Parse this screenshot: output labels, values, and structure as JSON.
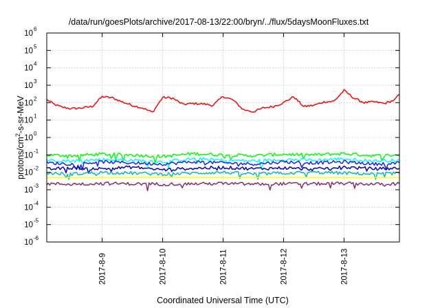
{
  "chart_data": {
    "type": "line",
    "title": "/data/run/goesPlots/archive/2017-08-13/22:00/bryn/../flux/5daysMoonFluxes.txt",
    "xlabel": "Coordinated Universal Time (UTC)",
    "ylabel": "protons/cm²-s-sr-MeV",
    "y_scale": "log",
    "ylim": [
      1e-06,
      1000000.0
    ],
    "y_ticks": [
      {
        "base": "10",
        "exp": "-6"
      },
      {
        "base": "10",
        "exp": "-5"
      },
      {
        "base": "10",
        "exp": "-4"
      },
      {
        "base": "10",
        "exp": "-3"
      },
      {
        "base": "10",
        "exp": "-2"
      },
      {
        "base": "10",
        "exp": "-1"
      },
      {
        "base": "10",
        "exp": "0"
      },
      {
        "base": "10",
        "exp": "1"
      },
      {
        "base": "10",
        "exp": "2"
      },
      {
        "base": "10",
        "exp": "3"
      },
      {
        "base": "10",
        "exp": "4"
      },
      {
        "base": "10",
        "exp": "5"
      },
      {
        "base": "10",
        "exp": "6"
      }
    ],
    "x_ticks": [
      "2017-8-9",
      "2017-8-10",
      "2017-8-11",
      "2017-8-12",
      "2017-8-13"
    ],
    "xlim": [
      "2017-08-08 02:00",
      "2017-08-13 22:00"
    ],
    "grid": true,
    "series": [
      {
        "color": "#ff0000",
        "x": [
          "2017-08-08 02:00",
          "2017-08-08 05:00",
          "2017-08-08 08:00",
          "2017-08-08 12:00",
          "2017-08-08 16:00",
          "2017-08-08 20:00",
          "2017-08-09 00:00",
          "2017-08-09 04:00",
          "2017-08-09 08:00",
          "2017-08-09 12:00",
          "2017-08-09 16:00",
          "2017-08-09 20:00",
          "2017-08-10 00:00",
          "2017-08-10 04:00",
          "2017-08-10 08:00",
          "2017-08-10 12:00",
          "2017-08-10 16:00",
          "2017-08-10 20:00",
          "2017-08-11 00:00",
          "2017-08-11 04:00",
          "2017-08-11 08:00",
          "2017-08-11 12:00",
          "2017-08-11 16:00",
          "2017-08-11 20:00",
          "2017-08-12 00:00",
          "2017-08-12 04:00",
          "2017-08-12 08:00",
          "2017-08-12 12:00",
          "2017-08-12 16:00",
          "2017-08-12 20:00",
          "2017-08-13 00:00",
          "2017-08-13 04:00",
          "2017-08-13 08:00",
          "2017-08-13 12:00",
          "2017-08-13 16:00",
          "2017-08-13 20:00",
          "2017-08-13 22:00"
        ],
        "y": [
          150,
          80,
          55,
          45,
          50,
          60,
          220,
          190,
          110,
          70,
          50,
          28,
          200,
          180,
          80,
          90,
          85,
          70,
          230,
          140,
          40,
          30,
          50,
          60,
          100,
          220,
          60,
          70,
          110,
          120,
          500,
          180,
          100,
          110,
          90,
          140,
          300
        ]
      },
      {
        "color": "#00ff00",
        "x": [
          "2017-08-08 02:00",
          "2017-08-08 12:00",
          "2017-08-09 00:00",
          "2017-08-09 12:00",
          "2017-08-10 00:00",
          "2017-08-10 12:00",
          "2017-08-11 00:00",
          "2017-08-11 12:00",
          "2017-08-12 00:00",
          "2017-08-12 12:00",
          "2017-08-13 00:00",
          "2017-08-13 12:00",
          "2017-08-13 22:00"
        ],
        "y": [
          0.1,
          0.09,
          0.11,
          0.1,
          0.08,
          0.12,
          0.1,
          0.09,
          0.11,
          0.1,
          0.12,
          0.09,
          0.1
        ]
      },
      {
        "color": "#00ffff",
        "x": [
          "2017-08-08 02:00",
          "2017-08-08 12:00",
          "2017-08-09 00:00",
          "2017-08-09 12:00",
          "2017-08-10 00:00",
          "2017-08-10 12:00",
          "2017-08-11 00:00",
          "2017-08-11 12:00",
          "2017-08-12 00:00",
          "2017-08-12 12:00",
          "2017-08-13 00:00",
          "2017-08-13 12:00",
          "2017-08-13 22:00"
        ],
        "y": [
          0.05,
          0.045,
          0.055,
          0.05,
          0.04,
          0.06,
          0.05,
          0.045,
          0.055,
          0.05,
          0.06,
          0.045,
          0.05
        ]
      },
      {
        "color": "#1e1eff",
        "x": [
          "2017-08-08 02:00",
          "2017-08-08 12:00",
          "2017-08-09 00:00",
          "2017-08-09 12:00",
          "2017-08-10 00:00",
          "2017-08-10 12:00",
          "2017-08-11 00:00",
          "2017-08-11 12:00",
          "2017-08-12 00:00",
          "2017-08-12 12:00",
          "2017-08-13 00:00",
          "2017-08-13 12:00",
          "2017-08-13 22:00"
        ],
        "y": [
          0.035,
          0.03,
          0.04,
          0.035,
          0.03,
          0.04,
          0.035,
          0.03,
          0.04,
          0.035,
          0.04,
          0.03,
          0.035
        ]
      },
      {
        "color": "#0000c8",
        "x": [
          "2017-08-08 02:00",
          "2017-08-08 12:00",
          "2017-08-09 00:00",
          "2017-08-09 12:00",
          "2017-08-10 00:00",
          "2017-08-10 12:00",
          "2017-08-11 00:00",
          "2017-08-11 12:00",
          "2017-08-12 00:00",
          "2017-08-12 12:00",
          "2017-08-13 00:00",
          "2017-08-13 12:00",
          "2017-08-13 22:00"
        ],
        "y": [
          0.015,
          0.018,
          0.016,
          0.02,
          0.014,
          0.017,
          0.019,
          0.016,
          0.018,
          0.015,
          0.02,
          0.016,
          0.017
        ]
      },
      {
        "color": "#00bcbc",
        "x": [
          "2017-08-08 02:00",
          "2017-08-08 12:00",
          "2017-08-09 00:00",
          "2017-08-09 12:00",
          "2017-08-10 00:00",
          "2017-08-10 12:00",
          "2017-08-11 00:00",
          "2017-08-11 12:00",
          "2017-08-12 00:00",
          "2017-08-12 12:00",
          "2017-08-13 00:00",
          "2017-08-13 12:00",
          "2017-08-13 22:00"
        ],
        "y": [
          0.009,
          0.008,
          0.01,
          0.009,
          0.008,
          0.009,
          0.01,
          0.008,
          0.009,
          0.01,
          0.009,
          0.008,
          0.009
        ]
      },
      {
        "color": "#ffff00",
        "x": [
          "2017-08-08 02:00",
          "2017-08-09 00:00",
          "2017-08-10 00:00",
          "2017-08-11 00:00",
          "2017-08-12 00:00",
          "2017-08-13 00:00",
          "2017-08-13 22:00"
        ],
        "y": [
          0.005,
          0.005,
          0.0052,
          0.005,
          0.0051,
          0.005,
          0.005
        ]
      },
      {
        "color": "#8b2a6a",
        "x": [
          "2017-08-08 02:00",
          "2017-08-08 12:00",
          "2017-08-09 00:00",
          "2017-08-09 12:00",
          "2017-08-10 00:00",
          "2017-08-10 12:00",
          "2017-08-11 00:00",
          "2017-08-11 12:00",
          "2017-08-12 00:00",
          "2017-08-12 12:00",
          "2017-08-13 00:00",
          "2017-08-13 12:00",
          "2017-08-13 22:00"
        ],
        "y": [
          0.0022,
          0.0021,
          0.0023,
          0.0022,
          0.0021,
          0.0022,
          0.0023,
          0.0021,
          0.0022,
          0.0022,
          0.0023,
          0.0021,
          0.0022
        ]
      }
    ]
  }
}
